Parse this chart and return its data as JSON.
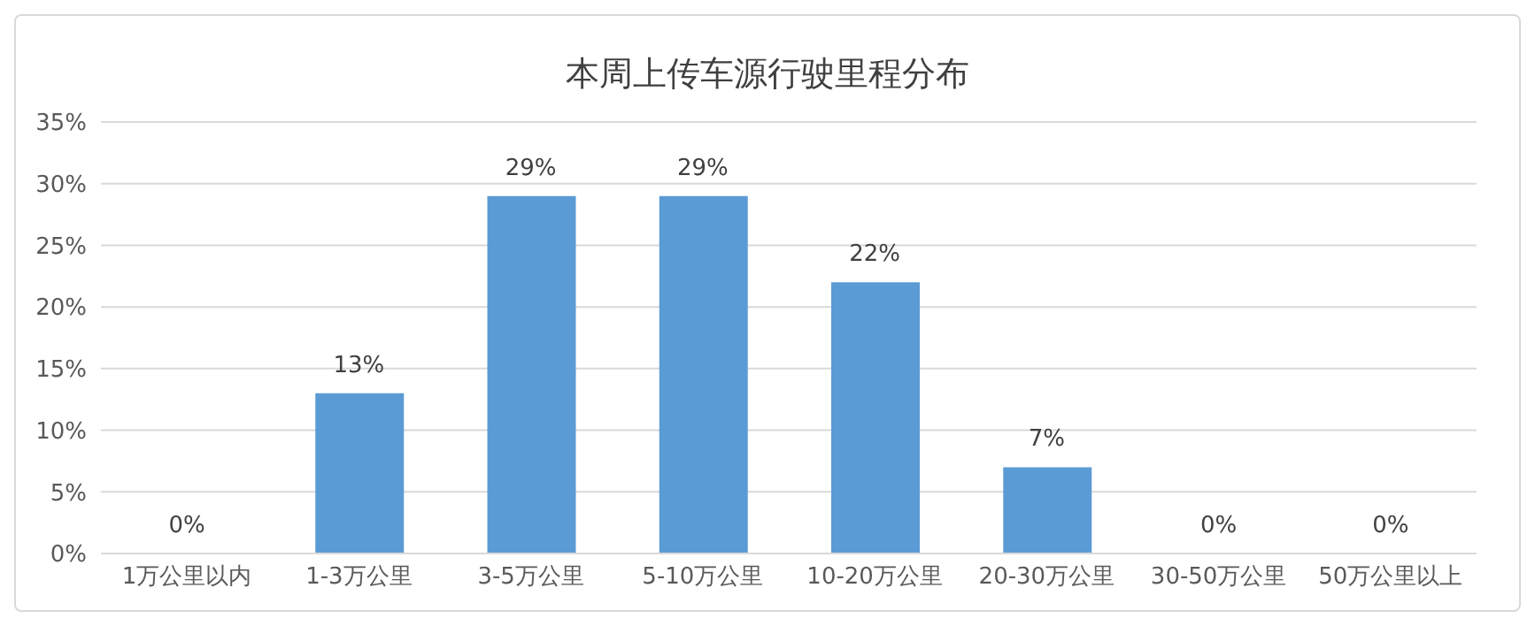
{
  "chart_data": {
    "type": "bar",
    "title": "本周上传车源行驶里程分布",
    "categories": [
      "1万公里以内",
      "1-3万公里",
      "3-5万公里",
      "5-10万公里",
      "10-20万公里",
      "20-30万公里",
      "30-50万公里",
      "50万公里以上"
    ],
    "values": [
      0,
      13,
      29,
      29,
      22,
      7,
      0,
      0
    ],
    "value_labels": [
      "0%",
      "13%",
      "29%",
      "29%",
      "22%",
      "7%",
      "0%",
      "0%"
    ],
    "color": "#5b9bd5",
    "ylim": [
      0,
      35
    ],
    "yticks": [
      {
        "value": 0,
        "label": "0%"
      },
      {
        "value": 5,
        "label": "5%"
      },
      {
        "value": 10,
        "label": "10%"
      },
      {
        "value": 15,
        "label": "15%"
      },
      {
        "value": 20,
        "label": "20%"
      },
      {
        "value": 25,
        "label": "25%"
      },
      {
        "value": 30,
        "label": "30%"
      },
      {
        "value": 35,
        "label": "35%"
      }
    ],
    "grid": "y",
    "legend": false
  }
}
